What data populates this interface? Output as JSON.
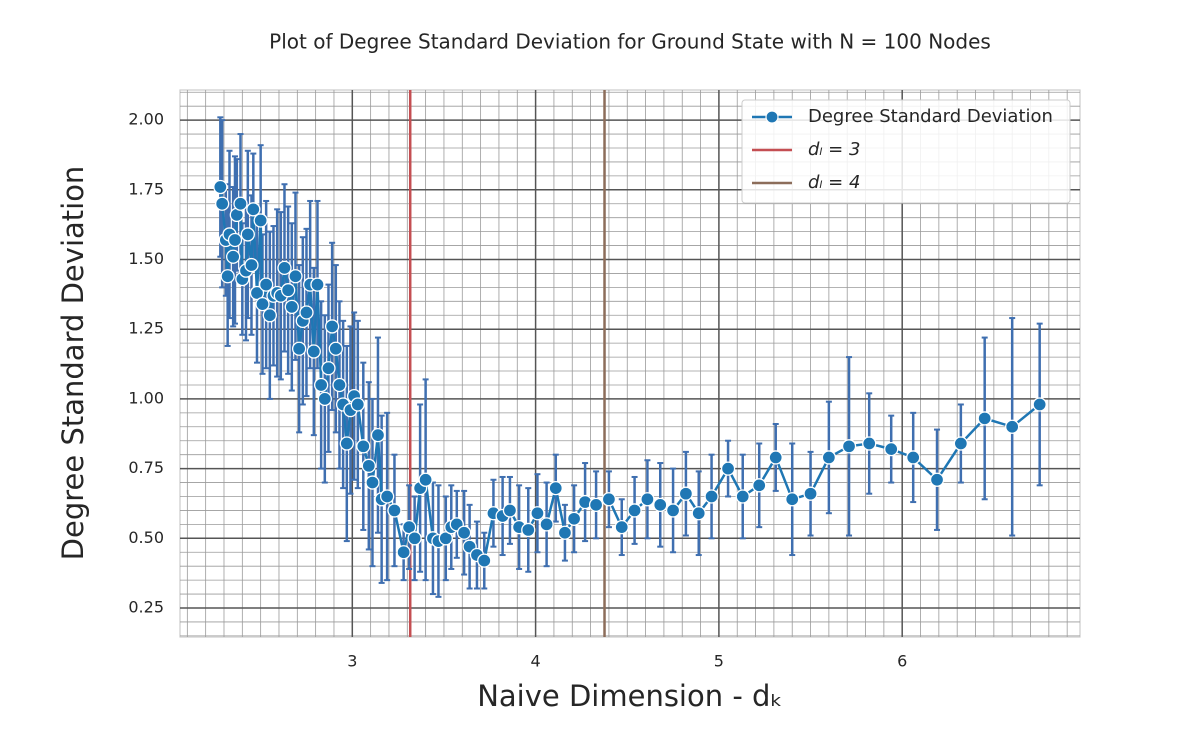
{
  "chart_data": {
    "type": "errorbar-line",
    "title": "Plot of Degree Standard Deviation for Ground State with N = 100 Nodes",
    "xlabel": "Naive Dimension - dₖ",
    "ylabel": "Degree Standard Deviation",
    "xlim": [
      2.06,
      6.97
    ],
    "ylim": [
      0.146,
      2.108
    ],
    "xticks": [
      3,
      4,
      5,
      6
    ],
    "yticks": [
      0.25,
      {
        "value": 0.5,
        "label": "0.50"
      },
      0.75,
      {
        "value": 1,
        "label": "1.00"
      },
      1.25,
      {
        "value": 1.5,
        "label": "1.50"
      },
      1.75,
      {
        "value": 2,
        "label": "2.00"
      }
    ],
    "xminorticks": [
      2.1,
      2.2,
      2.3,
      2.4,
      2.5,
      2.6,
      2.7,
      2.8,
      2.9,
      3.1,
      3.2,
      3.3,
      3.4,
      3.5,
      3.6,
      3.7,
      3.8,
      3.9,
      4.1,
      4.2,
      4.3,
      4.4,
      4.5,
      4.6,
      4.7,
      4.8,
      4.9,
      5.1,
      5.2,
      5.3,
      5.4,
      5.5,
      5.6,
      5.7,
      5.8,
      5.9,
      6.1,
      6.2,
      6.3,
      6.4,
      6.5,
      6.6,
      6.7,
      6.8,
      6.9
    ],
    "yminorticks": [
      0.15,
      0.2,
      0.3,
      0.35,
      0.4,
      0.45,
      0.55,
      0.6,
      0.65,
      0.7,
      0.8,
      0.85,
      0.9,
      0.95,
      1.05,
      1.1,
      1.15,
      1.2,
      1.3,
      1.35,
      1.4,
      1.45,
      1.55,
      1.6,
      1.65,
      1.7,
      1.8,
      1.85,
      1.9,
      1.95,
      2.05,
      2.1
    ],
    "grid": true,
    "legend": "upper right",
    "series": [
      {
        "name": "Degree Standard Deviation",
        "color": "#1f77b4",
        "error_color": "#3f6fb0",
        "x": [
          2.28,
          2.29,
          2.31,
          2.32,
          2.33,
          2.35,
          2.36,
          2.37,
          2.39,
          2.4,
          2.42,
          2.43,
          2.45,
          2.46,
          2.48,
          2.5,
          2.51,
          2.53,
          2.55,
          2.57,
          2.59,
          2.61,
          2.63,
          2.65,
          2.67,
          2.69,
          2.71,
          2.73,
          2.75,
          2.77,
          2.79,
          2.81,
          2.83,
          2.85,
          2.87,
          2.89,
          2.91,
          2.93,
          2.95,
          2.97,
          2.99,
          3.01,
          3.03,
          3.06,
          3.09,
          3.11,
          3.14,
          3.16,
          3.19,
          3.23,
          3.28,
          3.31,
          3.34,
          3.37,
          3.4,
          3.44,
          3.47,
          3.51,
          3.54,
          3.57,
          3.61,
          3.64,
          3.68,
          3.72,
          3.77,
          3.82,
          3.86,
          3.91,
          3.96,
          4.01,
          4.06,
          4.11,
          4.16,
          4.21,
          4.27,
          4.33,
          4.4,
          4.47,
          4.54,
          4.61,
          4.68,
          4.75,
          4.82,
          4.89,
          4.96,
          5.05,
          5.13,
          5.22,
          5.31,
          5.4,
          5.5,
          5.6,
          5.71,
          5.82,
          5.94,
          6.06,
          6.19,
          6.32,
          6.45,
          6.6,
          6.75
        ],
        "values": [
          1.76,
          1.7,
          1.57,
          1.44,
          1.59,
          1.51,
          1.57,
          1.66,
          1.7,
          1.43,
          1.46,
          1.59,
          1.48,
          1.68,
          1.38,
          1.64,
          1.34,
          1.41,
          1.3,
          1.37,
          1.38,
          1.37,
          1.47,
          1.39,
          1.33,
          1.44,
          1.18,
          1.28,
          1.31,
          1.41,
          1.17,
          1.41,
          1.05,
          1.0,
          1.11,
          1.26,
          1.18,
          1.05,
          0.98,
          0.84,
          0.96,
          1.01,
          0.98,
          0.83,
          0.76,
          0.7,
          0.87,
          0.64,
          0.65,
          0.6,
          0.45,
          0.54,
          0.5,
          0.68,
          0.71,
          0.5,
          0.49,
          0.5,
          0.54,
          0.55,
          0.52,
          0.47,
          0.44,
          0.42,
          0.59,
          0.58,
          0.6,
          0.54,
          0.53,
          0.59,
          0.55,
          0.68,
          0.52,
          0.57,
          0.63,
          0.62,
          0.64,
          0.54,
          0.6,
          0.64,
          0.62,
          0.6,
          0.66,
          0.59,
          0.65,
          0.75,
          0.65,
          0.69,
          0.79,
          0.64,
          0.66,
          0.79,
          0.83,
          0.84,
          0.82,
          0.79,
          0.71,
          0.84,
          0.93,
          0.9,
          0.98
        ],
        "errors": [
          0.25,
          0.3,
          0.2,
          0.25,
          0.3,
          0.25,
          0.3,
          0.2,
          0.25,
          0.2,
          0.25,
          0.3,
          0.25,
          0.2,
          0.25,
          0.27,
          0.25,
          0.3,
          0.3,
          0.25,
          0.3,
          0.3,
          0.3,
          0.3,
          0.3,
          0.3,
          0.3,
          0.3,
          0.3,
          0.3,
          0.3,
          0.3,
          0.3,
          0.3,
          0.3,
          0.3,
          0.3,
          0.3,
          0.3,
          0.35,
          0.3,
          0.3,
          0.3,
          0.3,
          0.3,
          0.3,
          0.35,
          0.3,
          0.3,
          0.2,
          0.1,
          0.15,
          0.15,
          0.3,
          0.36,
          0.2,
          0.2,
          0.15,
          0.15,
          0.12,
          0.15,
          0.15,
          0.12,
          0.1,
          0.12,
          0.14,
          0.12,
          0.15,
          0.15,
          0.14,
          0.15,
          0.12,
          0.1,
          0.12,
          0.14,
          0.12,
          0.1,
          0.1,
          0.12,
          0.14,
          0.15,
          0.15,
          0.15,
          0.15,
          0.15,
          0.1,
          0.15,
          0.15,
          0.12,
          0.2,
          0.15,
          0.2,
          0.32,
          0.18,
          0.12,
          0.16,
          0.18,
          0.14,
          0.29,
          0.39,
          0.29
        ]
      }
    ],
    "vlines": [
      {
        "name": "dₗ = 3",
        "x": 3.316,
        "color": "#c44e52"
      },
      {
        "name": "dₗ = 4",
        "x": 4.376,
        "color": "#8c6d5a"
      }
    ]
  }
}
